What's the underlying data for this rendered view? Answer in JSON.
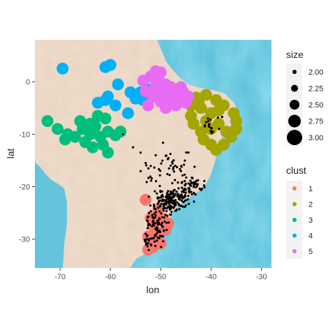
{
  "chart_data": {
    "type": "scatter",
    "xlabel": "lon",
    "ylabel": "lat",
    "xlim": [
      -75,
      -28
    ],
    "ylim": [
      -35.5,
      8
    ],
    "x_ticks": [
      -70,
      -60,
      -50,
      -40,
      -30
    ],
    "y_ticks": [
      0,
      -10,
      -20,
      -30
    ],
    "grid": false,
    "background": "map",
    "size_legend": {
      "title": "size",
      "entries": [
        {
          "label": "2.00",
          "value": 2.0
        },
        {
          "label": "2.25",
          "value": 2.25
        },
        {
          "label": "2.50",
          "value": 2.5
        },
        {
          "label": "2.75",
          "value": 2.75
        },
        {
          "label": "3.00",
          "value": 3.0
        }
      ]
    },
    "color_legend": {
      "title": "clust",
      "entries": [
        {
          "label": "1",
          "color": "#F8766D"
        },
        {
          "label": "2",
          "color": "#A3A500"
        },
        {
          "label": "3",
          "color": "#00BF7D"
        },
        {
          "label": "4",
          "color": "#00B0F6"
        },
        {
          "label": "5",
          "color": "#E76BF3"
        }
      ]
    },
    "series": [
      {
        "clust": "1",
        "color": "#F8766D",
        "size": 3.0,
        "points": [
          [
            -53,
            -22.5
          ],
          [
            -50.5,
            -24.5
          ],
          [
            -52,
            -26
          ],
          [
            -49.5,
            -26.5
          ],
          [
            -51.5,
            -27.5
          ],
          [
            -49,
            -28.2
          ],
          [
            -50.5,
            -28.8
          ],
          [
            -52.5,
            -29.5
          ],
          [
            -51,
            -30.2
          ],
          [
            -50,
            -30.8
          ],
          [
            -51.5,
            -31.5
          ],
          [
            -52.5,
            -32
          ],
          [
            -48.5,
            -27
          ],
          [
            -50,
            -26
          ]
        ]
      },
      {
        "clust": "2",
        "color": "#A3A500",
        "size": 3.0,
        "points": [
          [
            -43,
            -3
          ],
          [
            -41,
            -2.5
          ],
          [
            -39,
            -3.5
          ],
          [
            -37.5,
            -4.5
          ],
          [
            -35.5,
            -6
          ],
          [
            -35,
            -7.5
          ],
          [
            -35,
            -9
          ],
          [
            -36,
            -10.5
          ],
          [
            -37.5,
            -12
          ],
          [
            -39,
            -13
          ],
          [
            -40,
            -12
          ],
          [
            -41.5,
            -11
          ],
          [
            -42,
            -9.5
          ],
          [
            -43.5,
            -8
          ],
          [
            -44,
            -6.5
          ],
          [
            -44,
            -4.5
          ],
          [
            -42,
            -5
          ],
          [
            -40,
            -6
          ],
          [
            -38.5,
            -8
          ],
          [
            -40,
            -9
          ],
          [
            -37,
            -9.5
          ],
          [
            -38.5,
            -5.5
          ],
          [
            -41,
            -7.5
          ],
          [
            -42.5,
            -3.8
          ]
        ]
      },
      {
        "clust": "3",
        "color": "#00BF7D",
        "size": 3.0,
        "points": [
          [
            -72.5,
            -7.5
          ],
          [
            -70.5,
            -9
          ],
          [
            -68.5,
            -10
          ],
          [
            -67,
            -10.5
          ],
          [
            -65.5,
            -9
          ],
          [
            -64,
            -8
          ],
          [
            -63,
            -8.5
          ],
          [
            -62,
            -10.5
          ],
          [
            -61.5,
            -12
          ],
          [
            -63.5,
            -12.5
          ],
          [
            -65,
            -11.5
          ],
          [
            -64,
            -10
          ],
          [
            -66,
            -7.5
          ],
          [
            -60.5,
            -9.5
          ],
          [
            -59,
            -10.2
          ],
          [
            -58,
            -9.5
          ],
          [
            -60.5,
            -13.5
          ],
          [
            -61,
            -7
          ],
          [
            -62.5,
            -6.5
          ],
          [
            -69,
            -11
          ]
        ]
      },
      {
        "clust": "4",
        "color": "#00B0F6",
        "size": 3.0,
        "points": [
          [
            -69.5,
            2.5
          ],
          [
            -61,
            2.8
          ],
          [
            -60,
            3.2
          ],
          [
            -58.5,
            -0.5
          ],
          [
            -56,
            -2
          ],
          [
            -54,
            -2
          ],
          [
            -52.5,
            -1.5
          ],
          [
            -53.5,
            -3.5
          ],
          [
            -56.5,
            -6
          ],
          [
            -59,
            -4.5
          ],
          [
            -61,
            -3.5
          ],
          [
            -62.5,
            -4
          ],
          [
            -60.5,
            -2.8
          ],
          [
            -52,
            -3
          ],
          [
            -55,
            -3.2
          ]
        ]
      },
      {
        "clust": "5",
        "color": "#E76BF3",
        "size": 3.0,
        "points": [
          [
            -52,
            1
          ],
          [
            -50.5,
            0.5
          ],
          [
            -49,
            -0.5
          ],
          [
            -48,
            -1
          ],
          [
            -47,
            -1.5
          ],
          [
            -45.5,
            -2
          ],
          [
            -44.5,
            -2.8
          ],
          [
            -46,
            -3.2
          ],
          [
            -48,
            -3.5
          ],
          [
            -50,
            -3.8
          ],
          [
            -51.5,
            -2.8
          ],
          [
            -53,
            -1.8
          ],
          [
            -49.5,
            -2
          ],
          [
            -47.5,
            -2.6
          ],
          [
            -51,
            -0.8
          ],
          [
            -45,
            -4
          ],
          [
            -47,
            -4.5
          ],
          [
            -49,
            -5
          ],
          [
            -52.5,
            -4.5
          ],
          [
            -51,
            2
          ],
          [
            -50,
            1.8
          ],
          [
            -46,
            -1
          ],
          [
            -53.5,
            0.2
          ]
        ]
      },
      {
        "clust": "",
        "color": "#000000",
        "size": 2.0,
        "points": "dense scatter of small black points over southeastern Brazil (approx lon -55 to -38, lat -14 to -32)"
      }
    ]
  }
}
